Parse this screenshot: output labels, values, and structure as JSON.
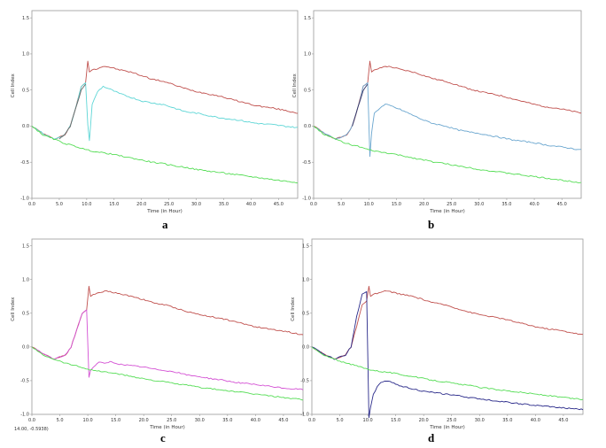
{
  "chart_data": [
    {
      "type": "line",
      "panel_label": "a",
      "xlabel": "Time (in Hour)",
      "ylabel": "Cell Index",
      "xlim": [
        0,
        48.5
      ],
      "ylim": [
        -1.0,
        1.6
      ],
      "xticks": [
        "0.0",
        "5.0",
        "10.0",
        "15.0",
        "20.0",
        "25.0",
        "30.0",
        "35.0",
        "40.0",
        "45.0"
      ],
      "yticks": [
        "-1.0",
        "-0.5",
        "0.0",
        "0.5",
        "1.0",
        "1.5"
      ],
      "series": [
        {
          "color": "#c0504d",
          "x": [
            0,
            2,
            4,
            6,
            7,
            8,
            9,
            9.8,
            10.2,
            10.5,
            11,
            12,
            13,
            14,
            16,
            18,
            20,
            22,
            24,
            26,
            28,
            30,
            32,
            34,
            36,
            38,
            40,
            42,
            44,
            46,
            48.5
          ],
          "y": [
            0.0,
            -0.1,
            -0.18,
            -0.12,
            0.0,
            0.25,
            0.55,
            0.6,
            0.9,
            0.75,
            0.78,
            0.8,
            0.83,
            0.82,
            0.78,
            0.75,
            0.7,
            0.65,
            0.62,
            0.57,
            0.52,
            0.48,
            0.45,
            0.42,
            0.38,
            0.34,
            0.3,
            0.27,
            0.25,
            0.22,
            0.18
          ]
        },
        {
          "color": "#5ed6d6",
          "x": [
            0,
            2,
            4,
            6,
            7,
            8,
            9,
            9.8,
            10.2,
            10.5,
            11,
            12,
            13,
            14,
            16,
            18,
            20,
            22,
            24,
            26,
            28,
            30,
            32,
            34,
            36,
            38,
            40,
            42,
            44,
            46,
            48.5
          ],
          "y": [
            0.0,
            -0.1,
            -0.18,
            -0.12,
            0.0,
            0.25,
            0.55,
            0.6,
            0.02,
            -0.2,
            0.3,
            0.48,
            0.55,
            0.52,
            0.45,
            0.4,
            0.35,
            0.32,
            0.3,
            0.25,
            0.2,
            0.18,
            0.15,
            0.12,
            0.1,
            0.08,
            0.05,
            0.03,
            0.02,
            0.0,
            -0.02
          ]
        },
        {
          "color": "#55dd55",
          "x": [
            0,
            2,
            4,
            6,
            8,
            10,
            12,
            14,
            16,
            18,
            20,
            22,
            24,
            26,
            28,
            30,
            32,
            34,
            36,
            38,
            40,
            42,
            44,
            46,
            48.5
          ],
          "y": [
            0.0,
            -0.12,
            -0.18,
            -0.24,
            -0.28,
            -0.33,
            -0.36,
            -0.38,
            -0.41,
            -0.44,
            -0.47,
            -0.5,
            -0.52,
            -0.55,
            -0.57,
            -0.6,
            -0.62,
            -0.64,
            -0.66,
            -0.68,
            -0.7,
            -0.72,
            -0.74,
            -0.76,
            -0.78
          ]
        },
        {
          "color": "#666666",
          "x": [
            5,
            6,
            7,
            8,
            9,
            9.8
          ],
          "y": [
            -0.18,
            -0.12,
            0.0,
            0.25,
            0.5,
            0.58
          ]
        }
      ]
    },
    {
      "type": "line",
      "panel_label": "b",
      "xlabel": "Time (in Hour)",
      "ylabel": "Cell Index",
      "xlim": [
        0,
        48.5
      ],
      "ylim": [
        -1.0,
        1.6
      ],
      "xticks": [
        "0.0",
        "5.0",
        "10.0",
        "15.0",
        "20.0",
        "25.0",
        "30.0",
        "35.0",
        "40.0",
        "45.0"
      ],
      "yticks": [
        "-1.0",
        "-0.5",
        "0.0",
        "0.5",
        "1.0",
        "1.5"
      ],
      "series": [
        {
          "color": "#c0504d",
          "x": [
            0,
            2,
            4,
            6,
            7,
            8,
            9,
            9.8,
            10.2,
            10.5,
            11,
            12,
            13,
            14,
            16,
            18,
            20,
            22,
            24,
            26,
            28,
            30,
            32,
            34,
            36,
            38,
            40,
            42,
            44,
            46,
            48.5
          ],
          "y": [
            0.0,
            -0.1,
            -0.18,
            -0.12,
            0.0,
            0.25,
            0.55,
            0.6,
            0.9,
            0.75,
            0.78,
            0.8,
            0.83,
            0.82,
            0.78,
            0.75,
            0.7,
            0.65,
            0.62,
            0.57,
            0.52,
            0.48,
            0.45,
            0.42,
            0.38,
            0.34,
            0.3,
            0.27,
            0.25,
            0.22,
            0.18
          ]
        },
        {
          "color": "#6aa6cf",
          "x": [
            0,
            2,
            4,
            6,
            7,
            8,
            9,
            9.8,
            10.2,
            10.5,
            11,
            12,
            13,
            14,
            16,
            18,
            20,
            22,
            24,
            26,
            28,
            30,
            32,
            34,
            36,
            38,
            40,
            42,
            44,
            46,
            48.5
          ],
          "y": [
            0.0,
            -0.1,
            -0.18,
            -0.12,
            0.0,
            0.25,
            0.55,
            0.6,
            -0.42,
            -0.1,
            0.18,
            0.25,
            0.3,
            0.28,
            0.22,
            0.15,
            0.08,
            0.03,
            0.0,
            -0.05,
            -0.08,
            -0.1,
            -0.13,
            -0.16,
            -0.19,
            -0.21,
            -0.23,
            -0.26,
            -0.28,
            -0.3,
            -0.33
          ]
        },
        {
          "color": "#55dd55",
          "x": [
            0,
            2,
            4,
            6,
            8,
            10,
            12,
            14,
            16,
            18,
            20,
            22,
            24,
            26,
            28,
            30,
            32,
            34,
            36,
            38,
            40,
            42,
            44,
            46,
            48.5
          ],
          "y": [
            0.0,
            -0.12,
            -0.18,
            -0.24,
            -0.28,
            -0.33,
            -0.36,
            -0.38,
            -0.41,
            -0.44,
            -0.47,
            -0.5,
            -0.52,
            -0.55,
            -0.57,
            -0.6,
            -0.62,
            -0.64,
            -0.66,
            -0.68,
            -0.7,
            -0.72,
            -0.74,
            -0.76,
            -0.78
          ]
        },
        {
          "color": "#333366",
          "x": [
            7,
            8,
            9,
            9.8
          ],
          "y": [
            0.0,
            0.25,
            0.5,
            0.58
          ]
        }
      ]
    },
    {
      "type": "line",
      "panel_label": "c",
      "xlabel": "Time (in Hour)",
      "ylabel": "Cell Index",
      "cursor_readout": "14.00, -0.5938)",
      "xlim": [
        0,
        48.5
      ],
      "ylim": [
        -1.0,
        1.6
      ],
      "xticks": [
        "0.0",
        "5.0",
        "10.0",
        "15.0",
        "20.0",
        "25.0",
        "30.0",
        "35.0",
        "40.0",
        "45.0"
      ],
      "yticks": [
        "-1.0",
        "-0.5",
        "0.0",
        "0.5",
        "1.0",
        "1.5"
      ],
      "series": [
        {
          "color": "#c0504d",
          "x": [
            0,
            2,
            4,
            6,
            7,
            8,
            9,
            9.8,
            10.2,
            10.5,
            11,
            12,
            13,
            14,
            16,
            18,
            20,
            22,
            24,
            26,
            28,
            30,
            32,
            34,
            36,
            38,
            40,
            42,
            44,
            46,
            48.5
          ],
          "y": [
            0.0,
            -0.1,
            -0.18,
            -0.12,
            0.0,
            0.25,
            0.5,
            0.55,
            0.9,
            0.75,
            0.78,
            0.8,
            0.83,
            0.82,
            0.78,
            0.75,
            0.7,
            0.65,
            0.62,
            0.57,
            0.52,
            0.48,
            0.45,
            0.42,
            0.38,
            0.34,
            0.3,
            0.27,
            0.25,
            0.22,
            0.18
          ]
        },
        {
          "color": "#d452d4",
          "x": [
            0,
            2,
            4,
            6,
            7,
            8,
            9,
            9.8,
            10.2,
            10.5,
            11,
            12,
            13,
            14,
            16,
            18,
            20,
            22,
            24,
            26,
            28,
            30,
            32,
            34,
            36,
            38,
            40,
            42,
            44,
            46,
            48.5
          ],
          "y": [
            0.0,
            -0.1,
            -0.18,
            -0.12,
            0.0,
            0.25,
            0.5,
            0.55,
            -0.45,
            -0.35,
            -0.3,
            -0.22,
            -0.25,
            -0.22,
            -0.26,
            -0.28,
            -0.3,
            -0.33,
            -0.35,
            -0.38,
            -0.42,
            -0.44,
            -0.47,
            -0.49,
            -0.52,
            -0.54,
            -0.56,
            -0.58,
            -0.6,
            -0.62,
            -0.63
          ]
        },
        {
          "color": "#55dd55",
          "x": [
            0,
            2,
            4,
            6,
            8,
            10,
            12,
            14,
            16,
            18,
            20,
            22,
            24,
            26,
            28,
            30,
            32,
            34,
            36,
            38,
            40,
            42,
            44,
            46,
            48.5
          ],
          "y": [
            0.0,
            -0.12,
            -0.18,
            -0.24,
            -0.28,
            -0.33,
            -0.36,
            -0.38,
            -0.41,
            -0.44,
            -0.47,
            -0.5,
            -0.52,
            -0.55,
            -0.57,
            -0.6,
            -0.62,
            -0.64,
            -0.66,
            -0.68,
            -0.7,
            -0.72,
            -0.74,
            -0.76,
            -0.78
          ]
        }
      ]
    },
    {
      "type": "line",
      "panel_label": "d",
      "xlabel": "Time (in Hour)",
      "ylabel": "Cell Index",
      "xlim": [
        0,
        48.5
      ],
      "ylim": [
        -1.0,
        1.6
      ],
      "xticks": [
        "0.0",
        "5.0",
        "10.0",
        "15.0",
        "20.0",
        "25.0",
        "30.0",
        "35.0",
        "40.0",
        "45.0"
      ],
      "yticks": [
        "-1.0",
        "-0.5",
        "0.0",
        "0.5",
        "1.0",
        "1.5"
      ],
      "series": [
        {
          "color": "#c0504d",
          "x": [
            0,
            2,
            4,
            6,
            7,
            8,
            9,
            9.8,
            10.2,
            10.5,
            11,
            12,
            13,
            14,
            16,
            18,
            20,
            22,
            24,
            26,
            28,
            30,
            32,
            34,
            36,
            38,
            40,
            42,
            44,
            46,
            48.5
          ],
          "y": [
            0.0,
            -0.1,
            -0.18,
            -0.12,
            0.0,
            0.3,
            0.62,
            0.68,
            0.9,
            0.75,
            0.78,
            0.8,
            0.83,
            0.82,
            0.78,
            0.75,
            0.7,
            0.65,
            0.62,
            0.57,
            0.52,
            0.48,
            0.45,
            0.42,
            0.38,
            0.34,
            0.3,
            0.27,
            0.25,
            0.22,
            0.18
          ]
        },
        {
          "color": "#2a2a8a",
          "x": [
            0,
            2,
            4,
            6,
            7,
            8,
            9,
            9.8,
            10.2,
            10.5,
            11,
            12,
            13,
            14,
            16,
            18,
            20,
            22,
            24,
            26,
            28,
            30,
            32,
            34,
            36,
            38,
            40,
            42,
            44,
            46,
            48.5
          ],
          "y": [
            0.0,
            -0.1,
            -0.18,
            -0.12,
            0.0,
            0.45,
            0.78,
            0.82,
            -1.05,
            -0.9,
            -0.7,
            -0.55,
            -0.5,
            -0.52,
            -0.58,
            -0.62,
            -0.66,
            -0.68,
            -0.7,
            -0.72,
            -0.75,
            -0.77,
            -0.79,
            -0.81,
            -0.83,
            -0.85,
            -0.87,
            -0.88,
            -0.9,
            -0.91,
            -0.93
          ]
        },
        {
          "color": "#55dd55",
          "x": [
            0,
            2,
            4,
            6,
            8,
            10,
            12,
            14,
            16,
            18,
            20,
            22,
            24,
            26,
            28,
            30,
            32,
            34,
            36,
            38,
            40,
            42,
            44,
            46,
            48.5
          ],
          "y": [
            0.0,
            -0.12,
            -0.18,
            -0.24,
            -0.28,
            -0.33,
            -0.36,
            -0.38,
            -0.41,
            -0.44,
            -0.47,
            -0.5,
            -0.52,
            -0.55,
            -0.57,
            -0.6,
            -0.62,
            -0.64,
            -0.66,
            -0.68,
            -0.7,
            -0.72,
            -0.74,
            -0.76,
            -0.78
          ]
        }
      ]
    }
  ]
}
